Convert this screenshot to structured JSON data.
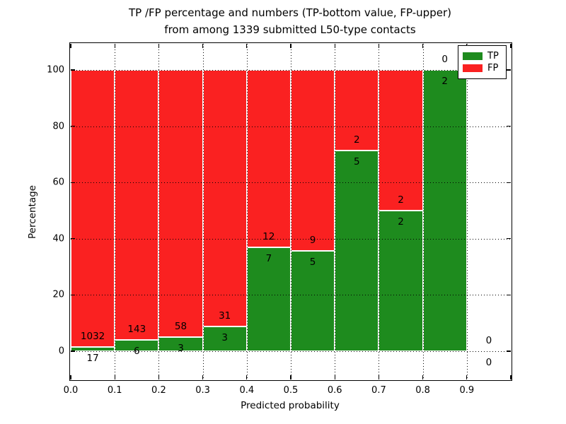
{
  "title": {
    "line1": "TP /FP percentage and numbers (TP-bottom value, FP-upper)",
    "line2": "from among 1339 submitted L50-type contacts"
  },
  "axes": {
    "xlabel": "Predicted probability",
    "ylabel": "Percentage",
    "x_tick_labels": [
      "0.0",
      "0.1",
      "0.2",
      "0.3",
      "0.4",
      "0.5",
      "0.6",
      "0.7",
      "0.8",
      "0.9"
    ],
    "y_tick_labels": [
      "0",
      "20",
      "40",
      "60",
      "80",
      "100"
    ]
  },
  "legend": {
    "items": [
      {
        "label": "TP",
        "color": "#1E8B1E"
      },
      {
        "label": "FP",
        "color": "#FA2121"
      }
    ]
  },
  "chart_data": {
    "type": "bar",
    "subtype": "stacked-percentage-histogram",
    "title": "TP /FP percentage and numbers (TP-bottom value, FP-upper) from among 1339 submitted L50-type contacts",
    "xlabel": "Predicted probability",
    "ylabel": "Percentage",
    "xlim": [
      0.0,
      1.0
    ],
    "ylim": [
      -10,
      110
    ],
    "bin_width": 0.1,
    "bin_ranges": [
      "0.0-0.1",
      "0.1-0.2",
      "0.2-0.3",
      "0.3-0.4",
      "0.4-0.5",
      "0.5-0.6",
      "0.6-0.7",
      "0.7-0.8",
      "0.8-0.9",
      "0.9-1.0"
    ],
    "x_tick_labels": [
      "0.0",
      "0.1",
      "0.2",
      "0.3",
      "0.4",
      "0.5",
      "0.6",
      "0.7",
      "0.8",
      "0.9"
    ],
    "y_tick_values": [
      0,
      20,
      40,
      60,
      80,
      100
    ],
    "series": [
      {
        "name": "TP",
        "stack_position": "bottom",
        "color": "#1E8B1E",
        "counts": [
          17,
          6,
          3,
          3,
          7,
          5,
          5,
          2,
          2,
          0
        ],
        "percent": [
          1.62,
          4.03,
          4.92,
          8.82,
          36.84,
          35.71,
          71.43,
          50.0,
          100.0,
          null
        ]
      },
      {
        "name": "FP",
        "stack_position": "upper",
        "color": "#FA2121",
        "counts": [
          1032,
          143,
          58,
          31,
          12,
          9,
          2,
          2,
          0,
          0
        ],
        "percent": [
          98.38,
          95.97,
          95.08,
          91.18,
          63.16,
          64.29,
          28.57,
          50.0,
          0.0,
          null
        ]
      }
    ],
    "total_contacts": 1339,
    "annotations": "each bin labeled with FP count above the TP/FP boundary and TP count below it",
    "grid": {
      "style": "dotted",
      "color": "#000000",
      "drawn_above_bars": true
    },
    "legend_position": "upper right"
  }
}
